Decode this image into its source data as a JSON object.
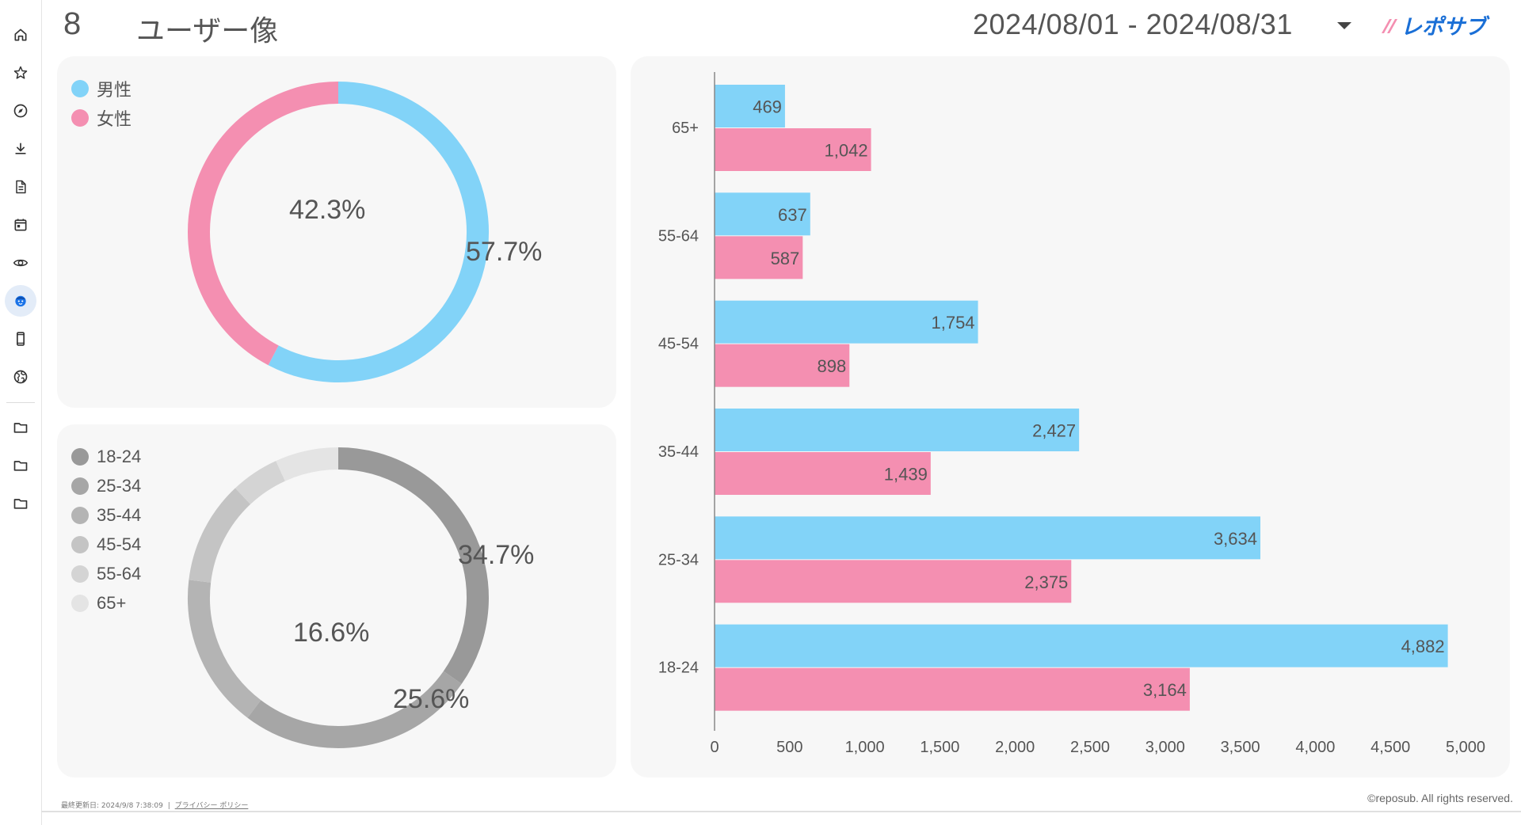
{
  "header": {
    "page_number": "8",
    "page_title": "ユーザー像",
    "date_range": "2024/08/01 - 2024/08/31",
    "brand": "レポサブ"
  },
  "sidebar": {
    "items": [
      {
        "name": "home",
        "icon": "home-icon"
      },
      {
        "name": "favorites",
        "icon": "star-icon"
      },
      {
        "name": "explore",
        "icon": "compass-icon"
      },
      {
        "name": "download",
        "icon": "download-icon"
      },
      {
        "name": "document",
        "icon": "document-icon"
      },
      {
        "name": "calendar",
        "icon": "calendar-icon"
      },
      {
        "name": "views",
        "icon": "eye-icon"
      },
      {
        "name": "user-profile",
        "icon": "face-icon",
        "active": true
      },
      {
        "name": "device",
        "icon": "smartphone-icon"
      },
      {
        "name": "region",
        "icon": "globe-icon"
      },
      {
        "name": "folder-1",
        "icon": "folder-icon"
      },
      {
        "name": "folder-2",
        "icon": "folder-icon"
      },
      {
        "name": "folder-3",
        "icon": "folder-icon"
      }
    ]
  },
  "gender_card": {
    "legend": [
      {
        "label": "男性",
        "color": "#82d3f8"
      },
      {
        "label": "女性",
        "color": "#f48fb1"
      }
    ],
    "labels": {
      "male": "57.7%",
      "female": "42.3%"
    }
  },
  "age_card": {
    "legend": [
      {
        "label": "18-24",
        "color": "#999999"
      },
      {
        "label": "25-34",
        "color": "#a6a6a6"
      },
      {
        "label": "35-44",
        "color": "#b4b4b4"
      },
      {
        "label": "45-54",
        "color": "#c4c4c4"
      },
      {
        "label": "55-64",
        "color": "#d4d4d4"
      },
      {
        "label": "65+",
        "color": "#e4e4e4"
      }
    ],
    "labels": {
      "a1824": "34.7%",
      "a2534": "25.6%",
      "a3544": "16.6%"
    }
  },
  "chart_data": [
    {
      "type": "pie",
      "title": "gender",
      "categories": [
        "男性",
        "女性"
      ],
      "values": [
        57.7,
        42.3
      ],
      "colors": [
        "#82d3f8",
        "#f48fb1"
      ]
    },
    {
      "type": "pie",
      "title": "age",
      "categories": [
        "18-24",
        "25-34",
        "35-44",
        "45-54",
        "55-64",
        "65+"
      ],
      "values": [
        34.7,
        25.6,
        16.6,
        11.1,
        5.2,
        6.8
      ],
      "colors": [
        "#999999",
        "#a6a6a6",
        "#b4b4b4",
        "#c4c4c4",
        "#d4d4d4",
        "#e4e4e4"
      ]
    },
    {
      "type": "bar",
      "orientation": "horizontal",
      "categories": [
        "65+",
        "55-64",
        "45-54",
        "35-44",
        "25-34",
        "18-24"
      ],
      "series": [
        {
          "name": "男性",
          "color": "#82d3f8",
          "values": [
            469,
            637,
            1754,
            2427,
            3634,
            4882
          ],
          "labels": [
            "469",
            "637",
            "1,754",
            "2,427",
            "3,634",
            "4,882"
          ]
        },
        {
          "name": "女性",
          "color": "#f48fb1",
          "values": [
            1042,
            587,
            898,
            1439,
            2375,
            3164
          ],
          "labels": [
            "1,042",
            "587",
            "898",
            "1,439",
            "2,375",
            "3,164"
          ]
        }
      ],
      "xlim": [
        0,
        5000
      ],
      "xticks": [
        0,
        500,
        1000,
        1500,
        2000,
        2500,
        3000,
        3500,
        4000,
        4500,
        5000
      ],
      "xtick_labels": [
        "0",
        "500",
        "1,000",
        "1,500",
        "2,000",
        "2,500",
        "3,000",
        "3,500",
        "4,000",
        "4,500",
        "5,000"
      ]
    }
  ],
  "footer": {
    "last_updated": "最終更新日: 2024/9/8 7:38:09",
    "separator": "|",
    "privacy_link": "プライバシー ポリシー",
    "copyright": "©reposub. All rights reserved."
  }
}
